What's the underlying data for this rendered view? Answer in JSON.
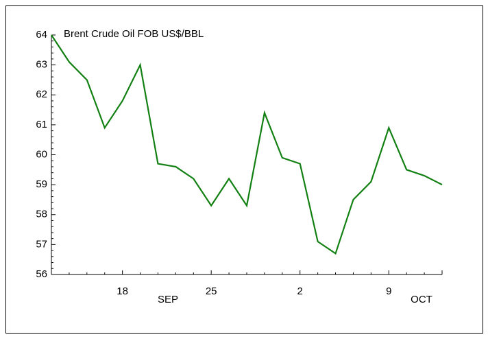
{
  "chart_data": {
    "type": "line",
    "title": "Brent Crude Oil FOB US$/BBL",
    "categories": [
      null,
      null,
      null,
      null,
      "18",
      null,
      null,
      null,
      null,
      "25",
      null,
      null,
      null,
      null,
      "2",
      null,
      null,
      null,
      null,
      "9",
      null,
      null,
      null
    ],
    "months": [
      "SEP",
      "OCT"
    ],
    "series": [
      {
        "color": "#138013",
        "values": [
          64.0,
          63.1,
          62.5,
          60.9,
          61.8,
          63.0,
          59.7,
          59.6,
          59.2,
          58.3,
          59.2,
          58.3,
          61.4,
          59.9,
          59.7,
          57.1,
          56.7,
          58.5,
          59.1,
          60.9,
          59.5,
          59.3,
          59.0
        ]
      }
    ],
    "ylim": [
      56,
      64
    ],
    "yticks": [
      56,
      57,
      58,
      59,
      60,
      61,
      62,
      63,
      64
    ]
  }
}
